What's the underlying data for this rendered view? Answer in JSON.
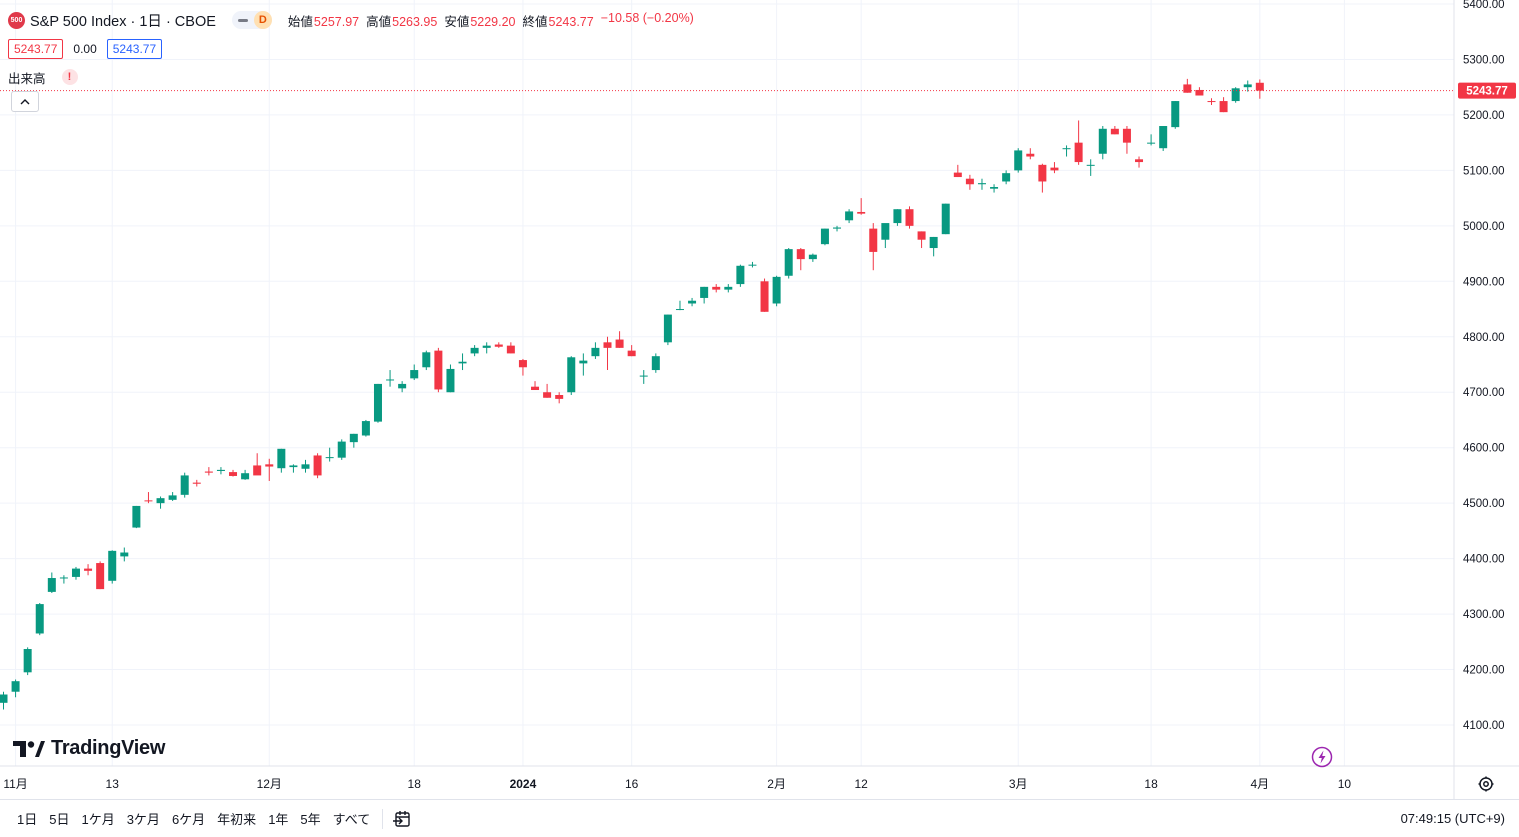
{
  "header": {
    "badge": "500",
    "symbol_title": "S&P 500 Index · 1日 · CBOE",
    "mode_badge": "D",
    "ohlc": [
      {
        "label": "始値",
        "value": "5257.97"
      },
      {
        "label": "高値",
        "value": "5263.95"
      },
      {
        "label": "安値",
        "value": "5229.20"
      },
      {
        "label": "終値",
        "value": "5243.77"
      },
      {
        "label": "",
        "value": "−10.58 (−0.20%)"
      }
    ],
    "bid": "5243.77",
    "spread": "0.00",
    "ask": "5243.77",
    "volume_label": "出来高",
    "warning_icon": "!",
    "collapse_icon": "^"
  },
  "logo_text": "TradingView",
  "bottom_bar": {
    "ranges": [
      "1日",
      "5日",
      "1ケ月",
      "3ケ月",
      "6ケ月",
      "年初来",
      "1年",
      "5年",
      "すべて"
    ],
    "clock": "07:49:15 (UTC+9)"
  },
  "colors": {
    "up": "#089981",
    "down": "#f23645",
    "accent": "#2962ff",
    "grid": "#f0f3fa"
  },
  "chart_data": {
    "type": "candlestick",
    "symbol": "S&P 500 Index",
    "interval": "1日",
    "exchange": "CBOE",
    "last_price": 5243.77,
    "last_price_label": "5243.77",
    "ylim": [
      4060,
      5400
    ],
    "y_ticks": [
      4100,
      4200,
      4300,
      4400,
      4500,
      4600,
      4700,
      4800,
      4900,
      5000,
      5100,
      5200,
      5300,
      5400
    ],
    "y_tick_labels": [
      "4100.00",
      "4200.00",
      "4300.00",
      "4400.00",
      "4500.00",
      "4600.00",
      "4700.00",
      "4800.00",
      "4900.00",
      "5000.00",
      "5100.00",
      "5200.00",
      "5300.00",
      "5400.00"
    ],
    "x_ticks": [
      {
        "label": "11月",
        "index": 1,
        "bold": false
      },
      {
        "label": "13",
        "index": 9,
        "bold": false
      },
      {
        "label": "12月",
        "index": 22,
        "bold": false
      },
      {
        "label": "18",
        "index": 34,
        "bold": false
      },
      {
        "label": "2024",
        "index": 43,
        "bold": true
      },
      {
        "label": "16",
        "index": 52,
        "bold": false
      },
      {
        "label": "2月",
        "index": 64,
        "bold": false
      },
      {
        "label": "12",
        "index": 71,
        "bold": false
      },
      {
        "label": "3月",
        "index": 84,
        "bold": false
      },
      {
        "label": "18",
        "index": 95,
        "bold": false
      },
      {
        "label": "4月",
        "index": 104,
        "bold": false
      },
      {
        "label": "10",
        "index": 111,
        "bold": false
      }
    ],
    "candles": [
      [
        4140,
        4160,
        4128,
        4155
      ],
      [
        4160,
        4182,
        4150,
        4179
      ],
      [
        4195,
        4240,
        4190,
        4237
      ],
      [
        4265,
        4320,
        4262,
        4318
      ],
      [
        4340,
        4375,
        4338,
        4365
      ],
      [
        4365,
        4370,
        4355,
        4366
      ],
      [
        4367,
        4385,
        4362,
        4382
      ],
      [
        4382,
        4390,
        4370,
        4378
      ],
      [
        4392,
        4395,
        4345,
        4345
      ],
      [
        4360,
        4415,
        4355,
        4414
      ],
      [
        4404,
        4420,
        4395,
        4411
      ],
      [
        4456,
        4495,
        4455,
        4495
      ],
      [
        4505,
        4520,
        4500,
        4504
      ],
      [
        4500,
        4512,
        4490,
        4509
      ],
      [
        4506,
        4520,
        4504,
        4514
      ],
      [
        4515,
        4555,
        4510,
        4550
      ],
      [
        4537,
        4542,
        4530,
        4535
      ],
      [
        4557,
        4565,
        4550,
        4555
      ],
      [
        4558,
        4565,
        4552,
        4560
      ],
      [
        4556,
        4560,
        4548,
        4549
      ],
      [
        4543,
        4560,
        4542,
        4554
      ],
      [
        4568,
        4590,
        4555,
        4550
      ],
      [
        4570,
        4580,
        4540,
        4566
      ],
      [
        4563,
        4598,
        4555,
        4598
      ],
      [
        4565,
        4570,
        4555,
        4568
      ],
      [
        4562,
        4578,
        4555,
        4570
      ],
      [
        4586,
        4590,
        4545,
        4550
      ],
      [
        4582,
        4600,
        4575,
        4583
      ],
      [
        4582,
        4615,
        4578,
        4611
      ],
      [
        4610,
        4625,
        4600,
        4625
      ],
      [
        4622,
        4650,
        4620,
        4648
      ],
      [
        4647,
        4715,
        4645,
        4715
      ],
      [
        4723,
        4740,
        4710,
        4723
      ],
      [
        4707,
        4720,
        4700,
        4715
      ],
      [
        4725,
        4750,
        4722,
        4740
      ],
      [
        4745,
        4775,
        4740,
        4772
      ],
      [
        4775,
        4780,
        4700,
        4705
      ],
      [
        4700,
        4750,
        4700,
        4742
      ],
      [
        4752,
        4770,
        4740,
        4755
      ],
      [
        4770,
        4785,
        4765,
        4780
      ],
      [
        4780,
        4790,
        4770,
        4784
      ],
      [
        4786,
        4790,
        4780,
        4782
      ],
      [
        4784,
        4790,
        4770,
        4770
      ],
      [
        4758,
        4760,
        4730,
        4745
      ],
      [
        4710,
        4720,
        4705,
        4704
      ],
      [
        4700,
        4715,
        4690,
        4690
      ],
      [
        4695,
        4700,
        4680,
        4688
      ],
      [
        4700,
        4765,
        4695,
        4763
      ],
      [
        4752,
        4770,
        4730,
        4757
      ],
      [
        4765,
        4790,
        4760,
        4780
      ],
      [
        4790,
        4800,
        4740,
        4780
      ],
      [
        4795,
        4810,
        4780,
        4780
      ],
      [
        4775,
        4785,
        4765,
        4765
      ],
      [
        4730,
        4740,
        4715,
        4730
      ],
      [
        4740,
        4770,
        4735,
        4765
      ],
      [
        4790,
        4840,
        4785,
        4840
      ],
      [
        4850,
        4865,
        4848,
        4850
      ],
      [
        4860,
        4870,
        4855,
        4865
      ],
      [
        4870,
        4890,
        4860,
        4890
      ],
      [
        4890,
        4895,
        4880,
        4885
      ],
      [
        4885,
        4895,
        4880,
        4890
      ],
      [
        4895,
        4930,
        4890,
        4928
      ],
      [
        4930,
        4935,
        4925,
        4930
      ],
      [
        4900,
        4905,
        4845,
        4845
      ],
      [
        4860,
        4910,
        4855,
        4908
      ],
      [
        4910,
        4960,
        4905,
        4958
      ],
      [
        4958,
        4960,
        4920,
        4940
      ],
      [
        4940,
        4950,
        4935,
        4948
      ],
      [
        4967,
        4995,
        4965,
        4995
      ],
      [
        4995,
        5000,
        4990,
        4997
      ],
      [
        5010,
        5030,
        5005,
        5026
      ],
      [
        5025,
        5050,
        5020,
        5022
      ],
      [
        4995,
        5005,
        4920,
        4953
      ],
      [
        4975,
        5000,
        4960,
        5005
      ],
      [
        5005,
        5030,
        5000,
        5030
      ],
      [
        5030,
        5035,
        4995,
        5000
      ],
      [
        4990,
        4990,
        4960,
        4975
      ],
      [
        4960,
        4980,
        4945,
        4980
      ],
      [
        4985,
        5040,
        4985,
        5040
      ],
      [
        5096,
        5110,
        5088,
        5088
      ],
      [
        5085,
        5092,
        5065,
        5075
      ],
      [
        5075,
        5085,
        5065,
        5077
      ],
      [
        5067,
        5075,
        5060,
        5070
      ],
      [
        5080,
        5100,
        5075,
        5095
      ],
      [
        5100,
        5140,
        5096,
        5136
      ],
      [
        5130,
        5140,
        5120,
        5125
      ],
      [
        5110,
        5112,
        5060,
        5080
      ],
      [
        5105,
        5115,
        5095,
        5100
      ],
      [
        5140,
        5145,
        5125,
        5140
      ],
      [
        5150,
        5190,
        5110,
        5115
      ],
      [
        5110,
        5120,
        5090,
        5110
      ],
      [
        5130,
        5180,
        5120,
        5175
      ],
      [
        5175,
        5180,
        5165,
        5165
      ],
      [
        5175,
        5180,
        5130,
        5150
      ],
      [
        5120,
        5125,
        5105,
        5115
      ],
      [
        5150,
        5165,
        5145,
        5150
      ],
      [
        5140,
        5180,
        5135,
        5180
      ],
      [
        5178,
        5225,
        5175,
        5225
      ],
      [
        5255,
        5265,
        5240,
        5240
      ],
      [
        5245,
        5250,
        5235,
        5235
      ],
      [
        5225,
        5230,
        5218,
        5224
      ],
      [
        5225,
        5232,
        5205,
        5205
      ],
      [
        5225,
        5250,
        5222,
        5248
      ],
      [
        5250,
        5262,
        5242,
        5255
      ],
      [
        5257.97,
        5263.95,
        5229.2,
        5243.77
      ]
    ]
  }
}
